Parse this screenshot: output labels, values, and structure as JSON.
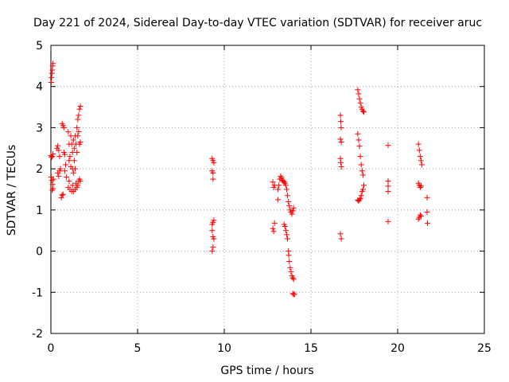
{
  "chart_data": {
    "type": "scatter",
    "title": "Day 221 of 2024, Sidereal Day-to-day VTEC variation (SDTVAR) for receiver aruc",
    "xlabel": "GPS time / hours",
    "ylabel": "SDTVAR / TECUs",
    "xlim": [
      0,
      25
    ],
    "ylim": [
      -2,
      5
    ],
    "xticks": [
      0,
      5,
      10,
      15,
      20,
      25
    ],
    "yticks": [
      -2,
      -1,
      0,
      1,
      2,
      3,
      4,
      5
    ],
    "grid": true,
    "marker": "+",
    "color": "#ff0000",
    "series": [
      {
        "name": "SDTVAR",
        "points": [
          [
            0.02,
            4.1
          ],
          [
            0.04,
            4.22
          ],
          [
            0.06,
            4.32
          ],
          [
            0.08,
            4.4
          ],
          [
            0.1,
            4.5
          ],
          [
            0.12,
            4.56
          ],
          [
            0.0,
            2.32
          ],
          [
            0.04,
            2.28
          ],
          [
            0.08,
            2.3
          ],
          [
            0.12,
            2.36
          ],
          [
            0.02,
            1.8
          ],
          [
            0.06,
            1.72
          ],
          [
            0.1,
            1.62
          ],
          [
            0.12,
            1.52
          ],
          [
            0.08,
            1.48
          ],
          [
            0.15,
            1.75
          ],
          [
            0.35,
            2.5
          ],
          [
            0.4,
            2.56
          ],
          [
            0.45,
            2.45
          ],
          [
            0.5,
            2.3
          ],
          [
            0.4,
            1.9
          ],
          [
            0.45,
            1.82
          ],
          [
            0.5,
            1.95
          ],
          [
            0.55,
            2.0
          ],
          [
            0.6,
            1.3
          ],
          [
            0.65,
            1.36
          ],
          [
            0.7,
            1.38
          ],
          [
            0.65,
            3.1
          ],
          [
            0.7,
            3.05
          ],
          [
            0.75,
            3.0
          ],
          [
            0.75,
            2.4
          ],
          [
            0.8,
            2.35
          ],
          [
            0.85,
            2.1
          ],
          [
            0.8,
            1.95
          ],
          [
            0.9,
            1.8
          ],
          [
            1.0,
            1.55
          ],
          [
            1.05,
            1.7
          ],
          [
            1.0,
            2.9
          ],
          [
            1.05,
            2.6
          ],
          [
            1.05,
            2.2
          ],
          [
            1.1,
            1.5
          ],
          [
            1.1,
            2.3
          ],
          [
            1.15,
            2.05
          ],
          [
            1.15,
            2.8
          ],
          [
            1.2,
            1.45
          ],
          [
            1.2,
            2.6
          ],
          [
            1.25,
            1.6
          ],
          [
            1.25,
            2.0
          ],
          [
            1.25,
            2.4
          ],
          [
            1.3,
            2.7
          ],
          [
            1.3,
            1.9
          ],
          [
            1.3,
            1.45
          ],
          [
            1.35,
            2.5
          ],
          [
            1.35,
            2.2
          ],
          [
            1.4,
            1.5
          ],
          [
            1.4,
            2.0
          ],
          [
            1.4,
            2.8
          ],
          [
            1.45,
            2.6
          ],
          [
            1.45,
            1.65
          ],
          [
            1.5,
            3.0
          ],
          [
            1.5,
            2.4
          ],
          [
            1.5,
            1.55
          ],
          [
            1.55,
            3.2
          ],
          [
            1.55,
            2.8
          ],
          [
            1.55,
            1.6
          ],
          [
            1.6,
            3.3
          ],
          [
            1.6,
            1.7
          ],
          [
            1.6,
            2.9
          ],
          [
            1.65,
            3.45
          ],
          [
            1.65,
            2.6
          ],
          [
            1.65,
            1.75
          ],
          [
            1.7,
            3.52
          ],
          [
            1.7,
            2.65
          ],
          [
            1.7,
            1.7
          ],
          [
            9.3,
            2.25
          ],
          [
            9.35,
            2.2
          ],
          [
            9.4,
            2.15
          ],
          [
            9.3,
            1.95
          ],
          [
            9.35,
            1.9
          ],
          [
            9.35,
            1.75
          ],
          [
            9.3,
            0.65
          ],
          [
            9.35,
            0.7
          ],
          [
            9.4,
            0.75
          ],
          [
            9.3,
            0.5
          ],
          [
            9.35,
            0.35
          ],
          [
            9.4,
            0.3
          ],
          [
            9.35,
            0.1
          ],
          [
            9.3,
            0.0
          ],
          [
            12.8,
            1.68
          ],
          [
            12.85,
            1.55
          ],
          [
            12.9,
            1.6
          ],
          [
            12.8,
            0.55
          ],
          [
            12.85,
            0.48
          ],
          [
            12.9,
            0.68
          ],
          [
            13.1,
            1.5
          ],
          [
            13.15,
            1.6
          ],
          [
            13.1,
            1.25
          ],
          [
            13.2,
            1.75
          ],
          [
            13.25,
            1.82
          ],
          [
            13.3,
            1.78
          ],
          [
            13.35,
            1.72
          ],
          [
            13.4,
            1.7
          ],
          [
            13.45,
            1.68
          ],
          [
            13.5,
            1.65
          ],
          [
            13.55,
            1.6
          ],
          [
            13.6,
            1.5
          ],
          [
            13.65,
            1.35
          ],
          [
            13.7,
            1.2
          ],
          [
            13.75,
            1.1
          ],
          [
            13.8,
            1.0
          ],
          [
            13.85,
            0.95
          ],
          [
            13.9,
            0.9
          ],
          [
            13.95,
            0.98
          ],
          [
            14.0,
            1.05
          ],
          [
            13.45,
            0.65
          ],
          [
            13.5,
            0.6
          ],
          [
            13.55,
            0.5
          ],
          [
            13.6,
            0.4
          ],
          [
            13.65,
            0.3
          ],
          [
            13.7,
            0.0
          ],
          [
            13.72,
            -0.1
          ],
          [
            13.75,
            -0.25
          ],
          [
            13.8,
            -0.4
          ],
          [
            13.85,
            -0.5
          ],
          [
            13.9,
            -0.6
          ],
          [
            13.95,
            -0.65
          ],
          [
            14.0,
            -0.68
          ],
          [
            13.95,
            -1.03
          ],
          [
            14.0,
            -1.05
          ],
          [
            14.05,
            -1.05
          ],
          [
            16.7,
            3.3
          ],
          [
            16.72,
            3.15
          ],
          [
            16.74,
            3.0
          ],
          [
            16.7,
            2.72
          ],
          [
            16.75,
            2.65
          ],
          [
            16.7,
            2.25
          ],
          [
            16.72,
            2.15
          ],
          [
            16.75,
            2.05
          ],
          [
            16.7,
            0.42
          ],
          [
            16.75,
            0.3
          ],
          [
            17.7,
            3.92
          ],
          [
            17.75,
            3.82
          ],
          [
            17.8,
            3.7
          ],
          [
            17.85,
            3.6
          ],
          [
            17.9,
            3.5
          ],
          [
            17.95,
            3.45
          ],
          [
            18.0,
            3.4
          ],
          [
            18.05,
            3.38
          ],
          [
            17.7,
            2.85
          ],
          [
            17.75,
            2.7
          ],
          [
            17.8,
            2.55
          ],
          [
            17.85,
            2.3
          ],
          [
            17.9,
            2.1
          ],
          [
            17.95,
            1.95
          ],
          [
            18.0,
            1.85
          ],
          [
            18.05,
            1.6
          ],
          [
            18.0,
            1.5
          ],
          [
            17.95,
            1.45
          ],
          [
            17.9,
            1.35
          ],
          [
            17.85,
            1.28
          ],
          [
            17.8,
            1.25
          ],
          [
            17.75,
            1.22
          ],
          [
            17.7,
            1.24
          ],
          [
            19.45,
            2.57
          ],
          [
            19.45,
            1.7
          ],
          [
            19.45,
            1.58
          ],
          [
            19.45,
            1.45
          ],
          [
            19.45,
            0.72
          ],
          [
            21.2,
            2.6
          ],
          [
            21.25,
            2.45
          ],
          [
            21.3,
            2.3
          ],
          [
            21.35,
            2.2
          ],
          [
            21.4,
            2.1
          ],
          [
            21.2,
            1.65
          ],
          [
            21.25,
            1.6
          ],
          [
            21.3,
            1.55
          ],
          [
            21.35,
            1.58
          ],
          [
            21.2,
            0.78
          ],
          [
            21.25,
            0.82
          ],
          [
            21.3,
            0.88
          ],
          [
            21.35,
            0.85
          ],
          [
            21.7,
            1.3
          ],
          [
            21.7,
            0.95
          ],
          [
            21.72,
            0.68
          ]
        ]
      }
    ]
  }
}
